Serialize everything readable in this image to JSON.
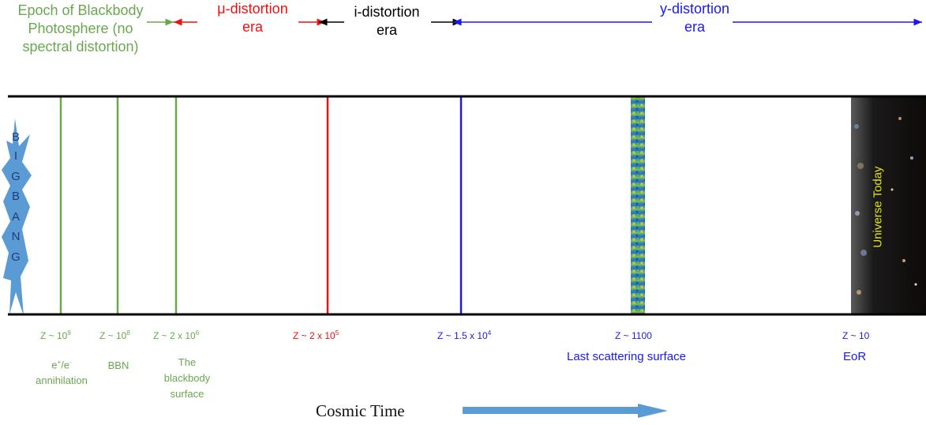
{
  "eras": {
    "blackbody": "Epoch of Blackbody Photosphere (no spectral distortion)",
    "mu_line1": "μ-distortion",
    "mu_line2": "era",
    "i_line1": "i-distortion",
    "i_line2": "era",
    "y_line1": "y-distortion",
    "y_line2": "era"
  },
  "epochs": [
    {
      "z_base": "Z ~ 10",
      "z_sup": "9",
      "label": "e+/e- annihilation",
      "color": "#6aa84f"
    },
    {
      "z_base": "Z ~ 10",
      "z_sup": "8",
      "label": "BBN",
      "color": "#6aa84f"
    },
    {
      "z_base": "Z ~ 2 x 10",
      "z_sup": "6",
      "label": "The blackbody surface",
      "color": "#6aa84f"
    },
    {
      "z_base": "Z ~ 2 x 10",
      "z_sup": "5",
      "label": "",
      "color": "#ee1111"
    },
    {
      "z_base": "Z ~ 1.5 x 10",
      "z_sup": "4",
      "label": "",
      "color": "#1a1af0"
    },
    {
      "z_base": "Z ~ 1100",
      "z_sup": "",
      "label": "Last scattering surface",
      "color": "#1a1af0"
    },
    {
      "z_base": "Z ~ 10",
      "z_sup": "",
      "label": "EoR",
      "color": "#1a1af0"
    }
  ],
  "annihilation": {
    "e1": "e",
    "sup1": "+",
    "slash": "/e",
    "sup2": "-",
    "word": "annihilation"
  },
  "blackbody_surface": {
    "l1": "The",
    "l2": "blackbody",
    "l3": "surface"
  },
  "big_bang_letters": [
    "B",
    "I",
    "G",
    "B",
    "A",
    "N",
    "G"
  ],
  "universe_today": "Universe Today",
  "cosmic_time": "Cosmic Time",
  "colors": {
    "green": "#6aa84f",
    "red": "#ee1111",
    "blue": "#1a1af0",
    "star": "#5b9bd5",
    "arrow": "#5b9bd5"
  }
}
